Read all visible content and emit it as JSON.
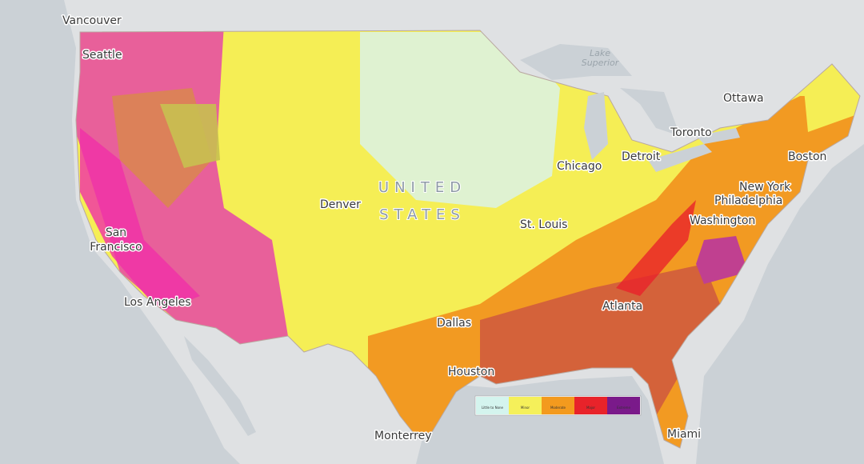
{
  "map": {
    "labels": [
      "Vancouver",
      "Seattle",
      "Lake Superior",
      "Ottawa",
      "Toronto",
      "Detroit",
      "Chicago",
      "Boston",
      "New York",
      "Philadelphia",
      "Washington",
      "UNITED STATES",
      "Denver",
      "St. Louis",
      "San Francisco",
      "Los Angeles",
      "Dallas",
      "Houston",
      "Atlanta",
      "Miami",
      "Monterrey"
    ],
    "legend": [
      {
        "label": "Little to None",
        "color": "#d4f4ee"
      },
      {
        "label": "Minor",
        "color": "#f5f05a"
      },
      {
        "label": "Moderate",
        "color": "#f39a1e"
      },
      {
        "label": "Major",
        "color": "#e8232a"
      },
      {
        "label": "Extreme",
        "color": "#7a1a8a"
      }
    ]
  }
}
